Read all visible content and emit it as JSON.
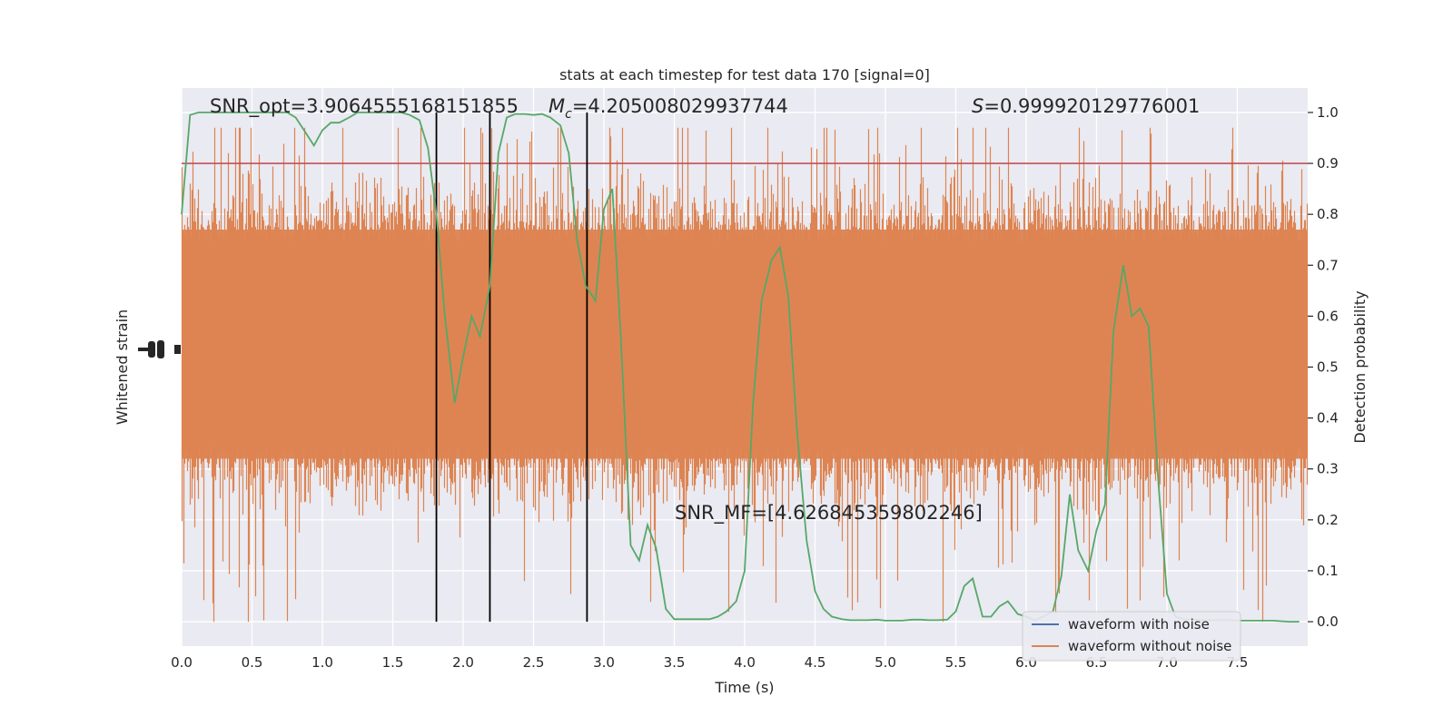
{
  "chart_data": {
    "type": "line",
    "title": "stats at each timestep for test data 170 [signal=0]",
    "xlabel": "Time (s)",
    "ylabel_left": "Whitened strain",
    "ylabel_right": "Detection probability",
    "xlim": [
      0.0,
      8.0
    ],
    "ylim_right": [
      -0.048,
      1.048
    ],
    "x_ticks": [
      "0.0",
      "0.5",
      "1.0",
      "1.5",
      "2.0",
      "2.5",
      "3.0",
      "3.5",
      "4.0",
      "4.5",
      "5.0",
      "5.5",
      "6.0",
      "6.5",
      "7.0",
      "7.5"
    ],
    "y_right_ticks": [
      "0.0",
      "0.1",
      "0.2",
      "0.3",
      "0.4",
      "0.5",
      "0.6",
      "0.7",
      "0.8",
      "0.9",
      "1.0"
    ],
    "annotations": {
      "snr_opt": "SNR_opt=3.9064555168151855",
      "mc_symbol": "M",
      "mc_subscript": "c",
      "mc_value": "=4.205008029937744",
      "s_symbol": "S",
      "s_value": "=0.999920129776001",
      "snr_mf": "SNR_MF=[4.626845359802246]"
    },
    "threshold": 0.9,
    "vlines_x": [
      1.81,
      2.19,
      2.88
    ],
    "series": [
      {
        "name": "waveform with noise",
        "color": "#4c72b0",
        "values": []
      },
      {
        "name": "waveform without noise",
        "color": "#dd8452",
        "description_range_right_axis": [
          0.0,
          0.97
        ]
      },
      {
        "color": "#55a868",
        "x": [
          0.0,
          0.06,
          0.12,
          0.19,
          0.25,
          0.31,
          0.37,
          0.44,
          0.5,
          0.56,
          0.62,
          0.69,
          0.75,
          0.81,
          0.87,
          0.94,
          1.0,
          1.06,
          1.12,
          1.19,
          1.25,
          1.31,
          1.37,
          1.44,
          1.5,
          1.56,
          1.62,
          1.69,
          1.75,
          1.81,
          1.87,
          1.94,
          2.0,
          2.06,
          2.12,
          2.19,
          2.25,
          2.31,
          2.37,
          2.44,
          2.5,
          2.56,
          2.62,
          2.69,
          2.75,
          2.81,
          2.87,
          2.94,
          3.0,
          3.06,
          3.12,
          3.19,
          3.25,
          3.31,
          3.37,
          3.44,
          3.5,
          3.56,
          3.62,
          3.69,
          3.75,
          3.81,
          3.87,
          3.94,
          4.0,
          4.06,
          4.12,
          4.19,
          4.25,
          4.31,
          4.37,
          4.44,
          4.5,
          4.56,
          4.62,
          4.69,
          4.75,
          4.81,
          4.87,
          4.94,
          5.0,
          5.06,
          5.12,
          5.19,
          5.25,
          5.31,
          5.37,
          5.44,
          5.5,
          5.56,
          5.62,
          5.69,
          5.75,
          5.81,
          5.87,
          5.94,
          6.0,
          6.06,
          6.12,
          6.19,
          6.25,
          6.31,
          6.37,
          6.44,
          6.5,
          6.56,
          6.62,
          6.69,
          6.75,
          6.81,
          6.87,
          6.94,
          7.0,
          7.06,
          7.12,
          7.19,
          7.25,
          7.31,
          7.37,
          7.44,
          7.5,
          7.56,
          7.62,
          7.69,
          7.75,
          7.81,
          7.87,
          7.94
        ],
        "y": [
          0.8,
          0.995,
          1.0,
          1.0,
          1.0,
          1.0,
          1.0,
          1.0,
          1.0,
          1.0,
          1.0,
          1.0,
          1.0,
          0.99,
          0.965,
          0.935,
          0.965,
          0.98,
          0.98,
          0.99,
          1.0,
          1.0,
          1.0,
          1.0,
          1.0,
          1.0,
          0.995,
          0.985,
          0.93,
          0.8,
          0.6,
          0.43,
          0.52,
          0.6,
          0.56,
          0.66,
          0.92,
          0.99,
          0.997,
          0.997,
          0.995,
          0.997,
          0.99,
          0.975,
          0.92,
          0.75,
          0.66,
          0.63,
          0.81,
          0.85,
          0.56,
          0.15,
          0.12,
          0.19,
          0.145,
          0.025,
          0.005,
          0.005,
          0.005,
          0.005,
          0.005,
          0.01,
          0.02,
          0.04,
          0.1,
          0.43,
          0.63,
          0.71,
          0.735,
          0.64,
          0.38,
          0.16,
          0.06,
          0.025,
          0.01,
          0.005,
          0.003,
          0.003,
          0.003,
          0.004,
          0.002,
          0.002,
          0.002,
          0.004,
          0.004,
          0.003,
          0.003,
          0.004,
          0.02,
          0.07,
          0.085,
          0.01,
          0.01,
          0.03,
          0.04,
          0.015,
          0.01,
          0.003,
          0.01,
          0.02,
          0.09,
          0.25,
          0.14,
          0.1,
          0.18,
          0.23,
          0.57,
          0.7,
          0.6,
          0.615,
          0.58,
          0.27,
          0.055,
          0.01,
          0.005,
          0.004,
          0.003,
          0.003,
          0.003,
          0.003,
          0.002,
          0.002,
          0.002,
          0.002,
          0.002,
          0.001,
          0.0,
          0.0
        ]
      }
    ],
    "legend_position": "lower-right",
    "grid": true,
    "background_color": "#eaeaf2",
    "threshold_color": "#c44e52",
    "vline_color": "#000000"
  }
}
